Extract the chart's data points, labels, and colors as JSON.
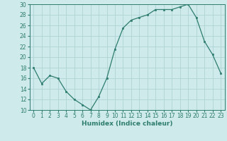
{
  "x": [
    0,
    1,
    2,
    3,
    4,
    5,
    6,
    7,
    8,
    9,
    10,
    11,
    12,
    13,
    14,
    15,
    16,
    17,
    18,
    19,
    20,
    21,
    22,
    23
  ],
  "y": [
    18,
    15,
    16.5,
    16,
    13.5,
    12,
    11,
    10,
    12.5,
    16,
    21.5,
    25.5,
    27,
    27.5,
    28,
    29,
    29,
    29,
    29.5,
    30,
    27.5,
    23,
    20.5,
    17
  ],
  "line_color": "#2e7d6e",
  "marker_color": "#2e7d6e",
  "bg_color": "#ceeaea",
  "grid_color": "#aed4d4",
  "xlabel": "Humidex (Indice chaleur)",
  "ylim": [
    10,
    30
  ],
  "xlim": [
    -0.5,
    23.5
  ],
  "yticks": [
    10,
    12,
    14,
    16,
    18,
    20,
    22,
    24,
    26,
    28,
    30
  ],
  "xticks": [
    0,
    1,
    2,
    3,
    4,
    5,
    6,
    7,
    8,
    9,
    10,
    11,
    12,
    13,
    14,
    15,
    16,
    17,
    18,
    19,
    20,
    21,
    22,
    23
  ],
  "xlabel_fontsize": 6.5,
  "tick_fontsize": 5.5
}
